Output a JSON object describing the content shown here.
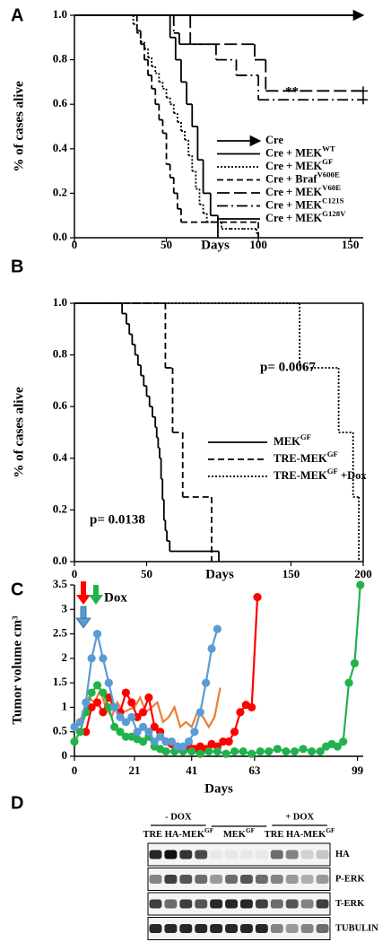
{
  "chart_data": [
    {
      "type": "line",
      "step": true,
      "panel_label": "A",
      "x_label": "Days",
      "y_label": "% of cases alive",
      "xlim": [
        0,
        157
      ],
      "ylim": [
        0,
        1
      ],
      "xticks": [
        0,
        50,
        100,
        150
      ],
      "yticks": [
        {
          "value": 0,
          "label": "0.0"
        },
        {
          "value": 0.2,
          "label": "0.2"
        },
        {
          "value": 0.4,
          "label": "0.4"
        },
        {
          "value": 0.6,
          "label": "0.6"
        },
        {
          "value": 0.8,
          "label": "0.8"
        },
        {
          "value": 1,
          "label": "1.0"
        }
      ],
      "annotations": [
        "**"
      ],
      "frame": false,
      "series": [
        {
          "name": "Cre",
          "color": "#000000",
          "style": "solid",
          "arrow": true,
          "x": [
            0,
            157
          ],
          "values": [
            1,
            1
          ]
        },
        {
          "name": "Cre + MEK",
          "sup": "WT",
          "color": "#000000",
          "style": "solid",
          "x": [
            0,
            157
          ],
          "values": [
            1,
            1
          ]
        },
        {
          "name": "Cre + MEK",
          "sup": "GF",
          "color": "#000000",
          "style": "dotted",
          "x": [
            0,
            32,
            34,
            36,
            38,
            40,
            42,
            44,
            46,
            48,
            50,
            52,
            54,
            56,
            58,
            60,
            62,
            64,
            66,
            68,
            70,
            72,
            75,
            80,
            85,
            92,
            99,
            100
          ],
          "values": [
            1,
            0.96,
            0.92,
            0.88,
            0.85,
            0.81,
            0.77,
            0.74,
            0.7,
            0.67,
            0.63,
            0.6,
            0.56,
            0.52,
            0.48,
            0.44,
            0.37,
            0.3,
            0.22,
            0.15,
            0.11,
            0.07,
            0.07,
            0.04,
            0.04,
            0.04,
            0.02,
            0
          ]
        },
        {
          "name": "Cre + Braf",
          "sup": "V600E",
          "color": "#000000",
          "style": "dashed",
          "x": [
            0,
            34,
            36,
            38,
            40,
            42,
            44,
            46,
            48,
            50,
            52,
            54,
            56,
            58,
            100
          ],
          "values": [
            1,
            0.93,
            0.87,
            0.8,
            0.73,
            0.67,
            0.6,
            0.53,
            0.47,
            0.33,
            0.27,
            0.2,
            0.13,
            0.07,
            0
          ]
        },
        {
          "name": "Cre + MEK",
          "sup": "V60E",
          "color": "#000000",
          "style": "longdash",
          "censored": true,
          "x": [
            0,
            63,
            98,
            104,
            157
          ],
          "values": [
            1,
            0.87,
            0.8,
            0.66,
            0.66
          ]
        },
        {
          "name": "Cre + MEK",
          "sup": "C121S",
          "color": "#000000",
          "style": "dashdot",
          "censored": true,
          "x": [
            0,
            54,
            57,
            77,
            88,
            100,
            157
          ],
          "values": [
            1,
            0.92,
            0.87,
            0.8,
            0.73,
            0.62,
            0.62
          ]
        },
        {
          "name": "Cre + MEK",
          "sup": "G128V",
          "color": "#000000",
          "style": "solid",
          "x": [
            0,
            52,
            55,
            58,
            61,
            64,
            67,
            70,
            74,
            78
          ],
          "values": [
            1,
            0.9,
            0.8,
            0.7,
            0.6,
            0.5,
            0.35,
            0.2,
            0.1,
            0
          ]
        }
      ]
    },
    {
      "type": "line",
      "step": true,
      "panel_label": "B",
      "x_label": "Days",
      "y_label": "% of cases alive",
      "xlim": [
        0,
        200
      ],
      "ylim": [
        0,
        1
      ],
      "xticks": [
        0,
        50,
        150,
        200
      ],
      "yticks": [
        {
          "value": 0,
          "label": "0.0"
        },
        {
          "value": 0.2,
          "label": "0.2"
        },
        {
          "value": 0.4,
          "label": "0.4"
        },
        {
          "value": 0.6,
          "label": "0.6"
        },
        {
          "value": 0.8,
          "label": "0.8"
        },
        {
          "value": 1,
          "label": "1.0"
        }
      ],
      "annotations": [
        "p= 0.0067",
        "p= 0.0138"
      ],
      "frame": true,
      "series": [
        {
          "name": "MEK",
          "sup": "GF",
          "color": "#000000",
          "style": "solid",
          "x": [
            0,
            33,
            36,
            38,
            40,
            42,
            44,
            46,
            48,
            50,
            52,
            54,
            56,
            57,
            58,
            59,
            60,
            61,
            62,
            63,
            64,
            66,
            100
          ],
          "values": [
            1,
            0.96,
            0.92,
            0.88,
            0.84,
            0.8,
            0.76,
            0.72,
            0.68,
            0.64,
            0.6,
            0.56,
            0.52,
            0.48,
            0.44,
            0.4,
            0.32,
            0.24,
            0.16,
            0.12,
            0.08,
            0.04,
            0
          ]
        },
        {
          "name": "TRE-MEK",
          "sup": "GF",
          "color": "#000000",
          "style": "dashed",
          "x": [
            0,
            63,
            68,
            75,
            95
          ],
          "values": [
            1,
            0.75,
            0.5,
            0.25,
            0
          ]
        },
        {
          "name": "TRE-MEK",
          "sup": "GF",
          "suffix": " +Dox",
          "color": "#000000",
          "style": "dotted",
          "x": [
            0,
            156,
            183,
            193,
            197
          ],
          "values": [
            1,
            0.75,
            0.5,
            0.25,
            0
          ]
        }
      ]
    },
    {
      "type": "line",
      "step": false,
      "panel_label": "C",
      "x_label": "Days",
      "y_label": "Tumor volume cm³",
      "xlim": [
        0,
        101
      ],
      "ylim": [
        0,
        3.5
      ],
      "xticks": [
        0,
        21,
        41,
        63,
        99
      ],
      "yticks": [
        0,
        0.5,
        1,
        1.5,
        2,
        2.5,
        3,
        3.5
      ],
      "annotations": [
        "Dox"
      ],
      "frame": false,
      "series": [
        {
          "color": "#ed7d31",
          "marker": false,
          "x": [
            0,
            3,
            5,
            7,
            9,
            11,
            13,
            15,
            17,
            19,
            21,
            23,
            25,
            27,
            29,
            31,
            33,
            35,
            37,
            39,
            41,
            43,
            45,
            47,
            49,
            51
          ],
          "values": [
            0.5,
            0.8,
            1.2,
            1.1,
            1.35,
            1.0,
            0.8,
            1.1,
            0.9,
            0.95,
            1.0,
            1.2,
            0.9,
            1.0,
            1.1,
            0.7,
            0.8,
            1.0,
            0.6,
            0.7,
            0.6,
            0.9,
            0.8,
            0.6,
            0.8,
            1.4
          ]
        },
        {
          "color": "#ff0000",
          "marker": true,
          "x": [
            4,
            6,
            8,
            10,
            12,
            14,
            16,
            18,
            20,
            22,
            24,
            26,
            28,
            30,
            32,
            34,
            36,
            38,
            40,
            42,
            44,
            46,
            48,
            50,
            52,
            54,
            56,
            58,
            60,
            62,
            64
          ],
          "values": [
            0.5,
            1.0,
            1.1,
            0.9,
            1.2,
            1.0,
            0.9,
            1.3,
            1.1,
            0.8,
            0.9,
            1.2,
            0.6,
            0.5,
            0.3,
            0.25,
            0.2,
            0.15,
            0.2,
            0.15,
            0.2,
            0.15,
            0.25,
            0.2,
            0.3,
            0.3,
            0.5,
            0.9,
            1.05,
            1.0,
            3.25
          ]
        },
        {
          "color": "#22b24c",
          "marker": true,
          "x": [
            0,
            2,
            4,
            6,
            8,
            10,
            12,
            14,
            16,
            18,
            20,
            22,
            24,
            26,
            28,
            30,
            32,
            35,
            38,
            41,
            44,
            47,
            50,
            53,
            56,
            59,
            62,
            65,
            68,
            71,
            74,
            77,
            80,
            83,
            86,
            88,
            90,
            92,
            94,
            96,
            98,
            100
          ],
          "values": [
            0.3,
            0.5,
            0.9,
            1.3,
            1.45,
            1.3,
            1.0,
            0.6,
            0.5,
            0.4,
            0.4,
            0.35,
            0.3,
            0.4,
            0.2,
            0.15,
            0.1,
            0.1,
            0.1,
            0.1,
            0.05,
            0.1,
            0.1,
            0.05,
            0.1,
            0.1,
            0.05,
            0.1,
            0.1,
            0.15,
            0.1,
            0.1,
            0.15,
            0.1,
            0.1,
            0.2,
            0.25,
            0.2,
            0.3,
            1.5,
            1.9,
            3.5
          ]
        },
        {
          "color": "#5b9bd5",
          "marker": true,
          "x": [
            0,
            2,
            4,
            6,
            8,
            10,
            12,
            14,
            16,
            18,
            20,
            22,
            24,
            26,
            28,
            30,
            32,
            34,
            36,
            38,
            40,
            42,
            44,
            46,
            48,
            50
          ],
          "values": [
            0.6,
            0.7,
            1.1,
            2.0,
            2.5,
            2.0,
            1.5,
            1.0,
            0.8,
            0.7,
            0.8,
            0.5,
            0.6,
            0.5,
            0.3,
            0.4,
            0.3,
            0.3,
            0.2,
            0.2,
            0.3,
            0.5,
            0.9,
            1.5,
            2.2,
            2.6
          ]
        }
      ]
    }
  ],
  "blot": {
    "panel_label": "D",
    "treatments": [
      "- DOX",
      "+ DOX"
    ],
    "lane_groups": [
      {
        "name": "TRE HA-MEK",
        "sup": "GF"
      },
      {
        "name": "MEK",
        "sup": "GF"
      },
      {
        "name": "TRE HA-MEK",
        "sup": "GF"
      }
    ],
    "rows": [
      "HA",
      "P-ERK",
      "T-ERK",
      "TUBULIN"
    ]
  }
}
